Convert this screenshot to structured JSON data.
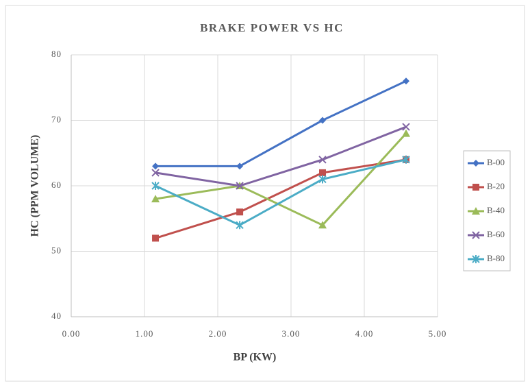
{
  "chart_data": {
    "type": "line",
    "title": "BRAKE POWER VS HC",
    "xlabel": "BP (KW)",
    "ylabel": "HC (PPM VOLUME)",
    "x": [
      1.15,
      2.3,
      3.43,
      4.57
    ],
    "xlim": [
      0,
      5
    ],
    "xticks": [
      {
        "value": 0,
        "label": "0.00"
      },
      {
        "value": 1,
        "label": "1.00"
      },
      {
        "value": 2,
        "label": "2.00"
      },
      {
        "value": 3,
        "label": "3.00"
      },
      {
        "value": 4,
        "label": "4.00"
      },
      {
        "value": 5,
        "label": "5.00"
      }
    ],
    "ylim": [
      40,
      80
    ],
    "yticks": [
      40,
      50,
      60,
      70,
      80
    ],
    "grid": true,
    "legend": "right",
    "series": [
      {
        "name": "B-00",
        "color": "#4472c4",
        "marker": "diamond",
        "values": [
          63,
          63,
          70,
          76
        ]
      },
      {
        "name": "B-20",
        "color": "#c0504d",
        "marker": "square",
        "values": [
          52,
          56,
          62,
          64
        ]
      },
      {
        "name": "B-40",
        "color": "#9bbb59",
        "marker": "triangle",
        "values": [
          58,
          60,
          54,
          68
        ]
      },
      {
        "name": "B-60",
        "color": "#8064a2",
        "marker": "x",
        "values": [
          62,
          60,
          64,
          69
        ]
      },
      {
        "name": "B-80",
        "color": "#4bacc6",
        "marker": "star",
        "values": [
          60,
          54,
          61,
          64
        ]
      }
    ]
  }
}
